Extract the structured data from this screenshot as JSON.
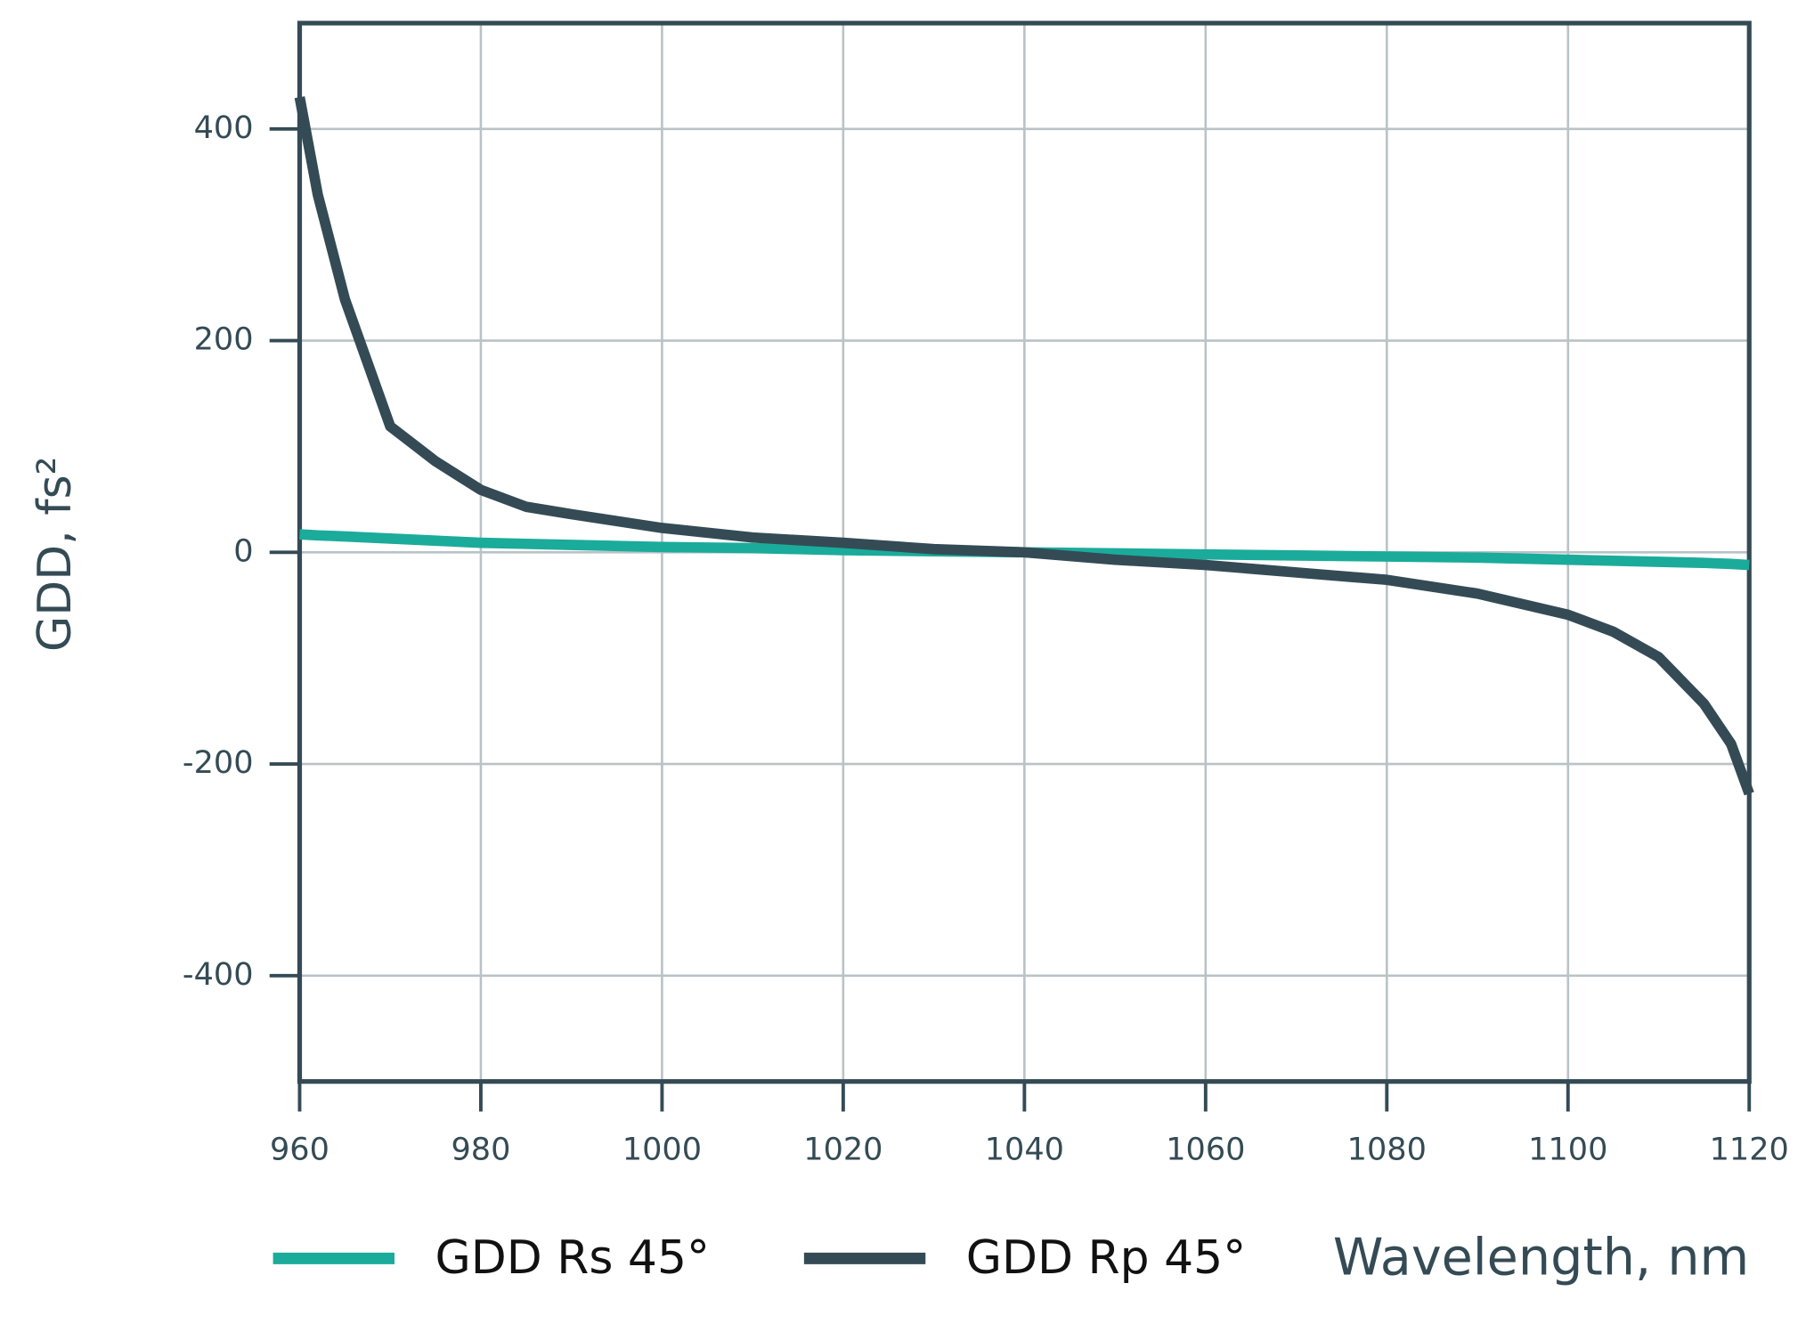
{
  "chart_data": {
    "type": "line",
    "x_label": "Wavelength, nm",
    "y_label": "GDD, fs²",
    "x": [
      960,
      962,
      965,
      970,
      975,
      980,
      985,
      990,
      1000,
      1010,
      1020,
      1030,
      1040,
      1050,
      1060,
      1070,
      1080,
      1090,
      1100,
      1105,
      1110,
      1115,
      1118,
      1120
    ],
    "series": [
      {
        "name": "GDD Rs 45°",
        "color": "#1aab9b",
        "values": [
          17,
          16,
          15,
          13,
          11,
          9,
          8,
          7,
          5,
          4,
          2,
          1,
          0,
          -1,
          -2,
          -3,
          -4,
          -5,
          -7,
          -8,
          -9,
          -10,
          -11,
          -12
        ]
      },
      {
        "name": "GDD Rp 45°",
        "color": "#344b55",
        "values": [
          430,
          338,
          239,
          119,
          86,
          59,
          43,
          36,
          23,
          14,
          9,
          3,
          0,
          -7,
          -12,
          -19,
          -26,
          -39,
          -59,
          -75,
          -99,
          -143,
          -181,
          -228
        ]
      }
    ],
    "xlim": [
      960,
      1120
    ],
    "xticks": [
      960,
      980,
      1000,
      1020,
      1040,
      1060,
      1080,
      1100,
      1120
    ],
    "ylim": [
      -500,
      500
    ],
    "yticks": [
      -400,
      -200,
      0,
      200,
      400
    ],
    "grid": true,
    "legend": "bottom"
  }
}
